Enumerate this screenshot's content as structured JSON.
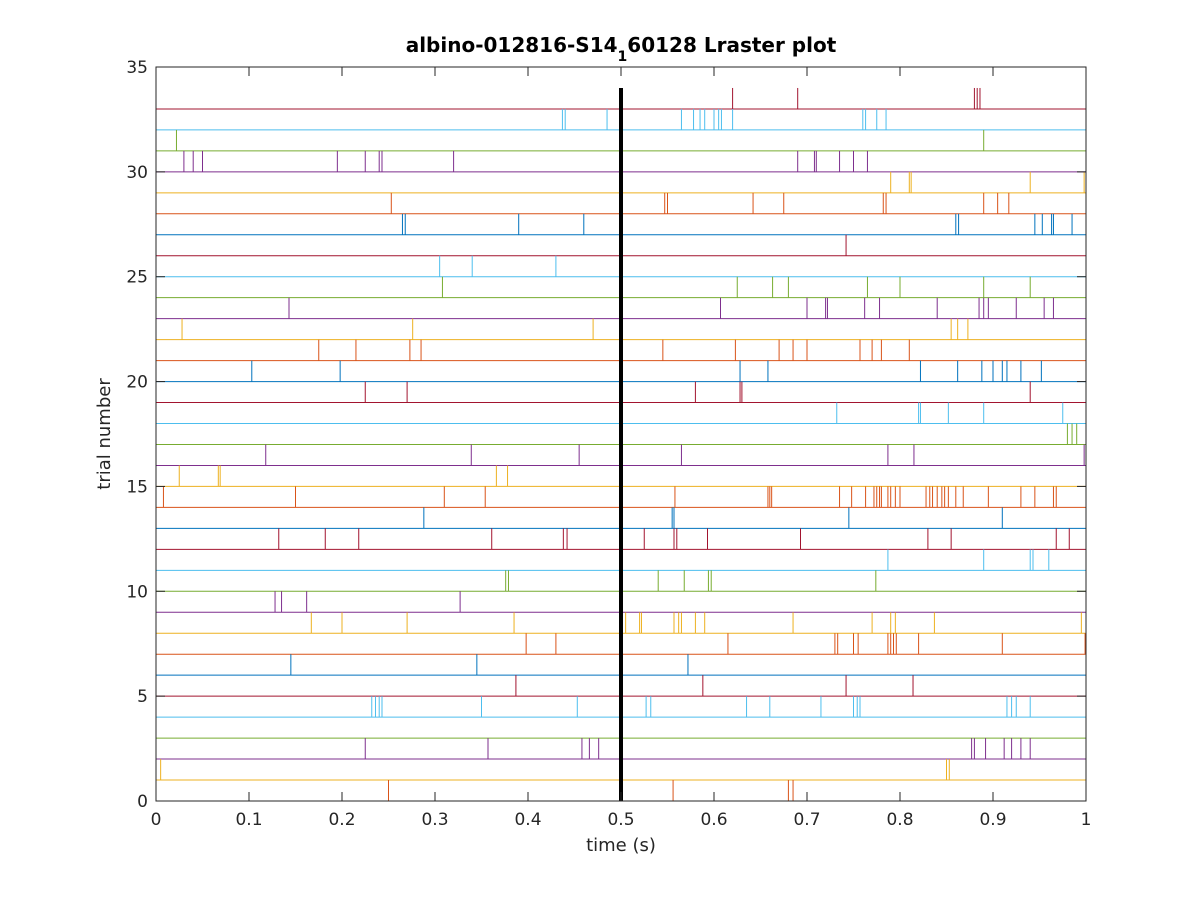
{
  "chart_data": {
    "type": "scatter",
    "title": {
      "prefix": "albino-012816-S14",
      "subscript": "1",
      "suffix": "60128 Lraster plot"
    },
    "xlabel": "time (s)",
    "ylabel": "trial number",
    "xlim": [
      0,
      1
    ],
    "ylim": [
      0,
      35
    ],
    "xticks": [
      0,
      0.1,
      0.2,
      0.3,
      0.4,
      0.5,
      0.6,
      0.7,
      0.8,
      0.9,
      1
    ],
    "xtick_labels": [
      "0",
      "0.1",
      "0.2",
      "0.3",
      "0.4",
      "0.5",
      "0.6",
      "0.7",
      "0.8",
      "0.9",
      "1"
    ],
    "yticks": [
      0,
      5,
      10,
      15,
      20,
      25,
      30,
      35
    ],
    "ytick_labels": [
      "0",
      "5",
      "10",
      "15",
      "20",
      "25",
      "30",
      "35"
    ],
    "stimulus_marker": {
      "x": 0.5,
      "y_range": [
        0,
        34
      ],
      "color": "#000000"
    },
    "trial_colors": [
      "#D95319",
      "#EDB120",
      "#7E2F8E",
      "#77AC30",
      "#4DBEEE",
      "#A2142F",
      "#0072BD"
    ],
    "trials": [
      {
        "trial": 1,
        "spikes": [
          0.25,
          0.556,
          0.68,
          0.685
        ]
      },
      {
        "trial": 2,
        "spikes": [
          0.005,
          0.85,
          0.853
        ]
      },
      {
        "trial": 3,
        "spikes": [
          0.225,
          0.357,
          0.458,
          0.466,
          0.476,
          0.877,
          0.88,
          0.892,
          0.912,
          0.92,
          0.93,
          0.94
        ]
      },
      {
        "trial": 4,
        "spikes": []
      },
      {
        "trial": 5,
        "spikes": [
          0.232,
          0.236,
          0.24,
          0.243,
          0.35,
          0.453,
          0.527,
          0.532,
          0.635,
          0.66,
          0.715,
          0.75,
          0.754,
          0.757,
          0.915,
          0.92,
          0.925,
          0.94
        ]
      },
      {
        "trial": 6,
        "spikes": [
          0.387,
          0.588,
          0.742,
          0.814
        ]
      },
      {
        "trial": 7,
        "spikes": [
          0.145,
          0.345,
          0.572
        ]
      },
      {
        "trial": 8,
        "spikes": [
          0.398,
          0.43,
          0.615,
          0.73,
          0.733,
          0.75,
          0.755,
          0.787,
          0.79,
          0.793,
          0.796,
          0.82,
          0.91,
          0.999
        ]
      },
      {
        "trial": 9,
        "spikes": [
          0.167,
          0.2,
          0.27,
          0.385,
          0.505,
          0.52,
          0.522,
          0.557,
          0.562,
          0.565,
          0.58,
          0.59,
          0.685,
          0.77,
          0.79,
          0.795,
          0.837,
          0.995
        ]
      },
      {
        "trial": 10,
        "spikes": [
          0.128,
          0.135,
          0.162,
          0.327
        ]
      },
      {
        "trial": 11,
        "spikes": [
          0.376,
          0.379,
          0.54,
          0.568,
          0.594,
          0.597,
          0.774
        ]
      },
      {
        "trial": 12,
        "spikes": [
          0.787,
          0.89,
          0.94,
          0.943,
          0.96
        ]
      },
      {
        "trial": 13,
        "spikes": [
          0.132,
          0.182,
          0.218,
          0.361,
          0.438,
          0.442,
          0.525,
          0.557,
          0.56,
          0.593,
          0.693,
          0.83,
          0.855,
          0.968,
          0.982
        ]
      },
      {
        "trial": 14,
        "spikes": [
          0.288,
          0.555,
          0.557,
          0.745,
          0.91
        ]
      },
      {
        "trial": 15,
        "spikes": [
          0.008,
          0.15,
          0.31,
          0.354,
          0.558,
          0.658,
          0.66,
          0.662,
          0.735,
          0.748,
          0.763,
          0.772,
          0.775,
          0.778,
          0.78,
          0.787,
          0.79,
          0.795,
          0.8,
          0.828,
          0.832,
          0.835,
          0.84,
          0.845,
          0.848,
          0.852,
          0.86,
          0.868,
          0.895,
          0.93,
          0.945,
          0.965,
          0.968
        ]
      },
      {
        "trial": 16,
        "spikes": [
          0.025,
          0.067,
          0.069,
          0.366,
          0.378
        ]
      },
      {
        "trial": 17,
        "spikes": [
          0.118,
          0.339,
          0.455,
          0.565,
          0.787,
          0.815,
          0.998
        ]
      },
      {
        "trial": 18,
        "spikes": [
          0.98,
          0.985,
          0.99
        ]
      },
      {
        "trial": 19,
        "spikes": [
          0.732,
          0.82,
          0.822,
          0.852,
          0.89,
          0.975
        ]
      },
      {
        "trial": 20,
        "spikes": [
          0.225,
          0.27,
          0.58,
          0.628,
          0.63,
          0.94
        ]
      },
      {
        "trial": 21,
        "spikes": [
          0.103,
          0.198,
          0.628,
          0.658,
          0.822,
          0.862,
          0.888,
          0.9,
          0.91,
          0.915,
          0.93,
          0.952
        ]
      },
      {
        "trial": 22,
        "spikes": [
          0.175,
          0.215,
          0.273,
          0.285,
          0.545,
          0.623,
          0.67,
          0.685,
          0.7,
          0.757,
          0.77,
          0.78,
          0.81
        ]
      },
      {
        "trial": 23,
        "spikes": [
          0.028,
          0.276,
          0.47,
          0.855,
          0.862,
          0.873
        ]
      },
      {
        "trial": 24,
        "spikes": [
          0.143,
          0.607,
          0.7,
          0.72,
          0.722,
          0.762,
          0.778,
          0.84,
          0.885,
          0.89,
          0.895,
          0.925,
          0.955,
          0.965
        ]
      },
      {
        "trial": 25,
        "spikes": [
          0.308,
          0.625,
          0.663,
          0.68,
          0.765,
          0.8,
          0.89,
          0.94
        ]
      },
      {
        "trial": 26,
        "spikes": [
          0.305,
          0.34,
          0.43
        ]
      },
      {
        "trial": 27,
        "spikes": [
          0.742
        ]
      },
      {
        "trial": 28,
        "spikes": [
          0.265,
          0.268,
          0.39,
          0.46,
          0.86,
          0.863,
          0.945,
          0.953,
          0.963,
          0.965,
          0.985
        ]
      },
      {
        "trial": 29,
        "spikes": [
          0.253,
          0.547,
          0.55,
          0.642,
          0.675,
          0.782,
          0.785,
          0.89,
          0.905,
          0.917
        ]
      },
      {
        "trial": 30,
        "spikes": [
          0.79,
          0.81,
          0.812,
          0.94,
          0.998
        ]
      },
      {
        "trial": 31,
        "spikes": [
          0.03,
          0.04,
          0.05,
          0.195,
          0.225,
          0.24,
          0.243,
          0.32,
          0.69,
          0.708,
          0.71,
          0.735,
          0.75,
          0.765
        ]
      },
      {
        "trial": 32,
        "spikes": [
          0.022,
          0.89
        ]
      },
      {
        "trial": 33,
        "spikes": [
          0.437,
          0.44,
          0.485,
          0.565,
          0.578,
          0.585,
          0.59,
          0.6,
          0.605,
          0.608,
          0.62,
          0.76,
          0.763,
          0.775,
          0.785
        ]
      },
      {
        "trial": 34,
        "spikes": [
          0.62,
          0.69,
          0.88,
          0.883,
          0.886
        ]
      }
    ]
  }
}
